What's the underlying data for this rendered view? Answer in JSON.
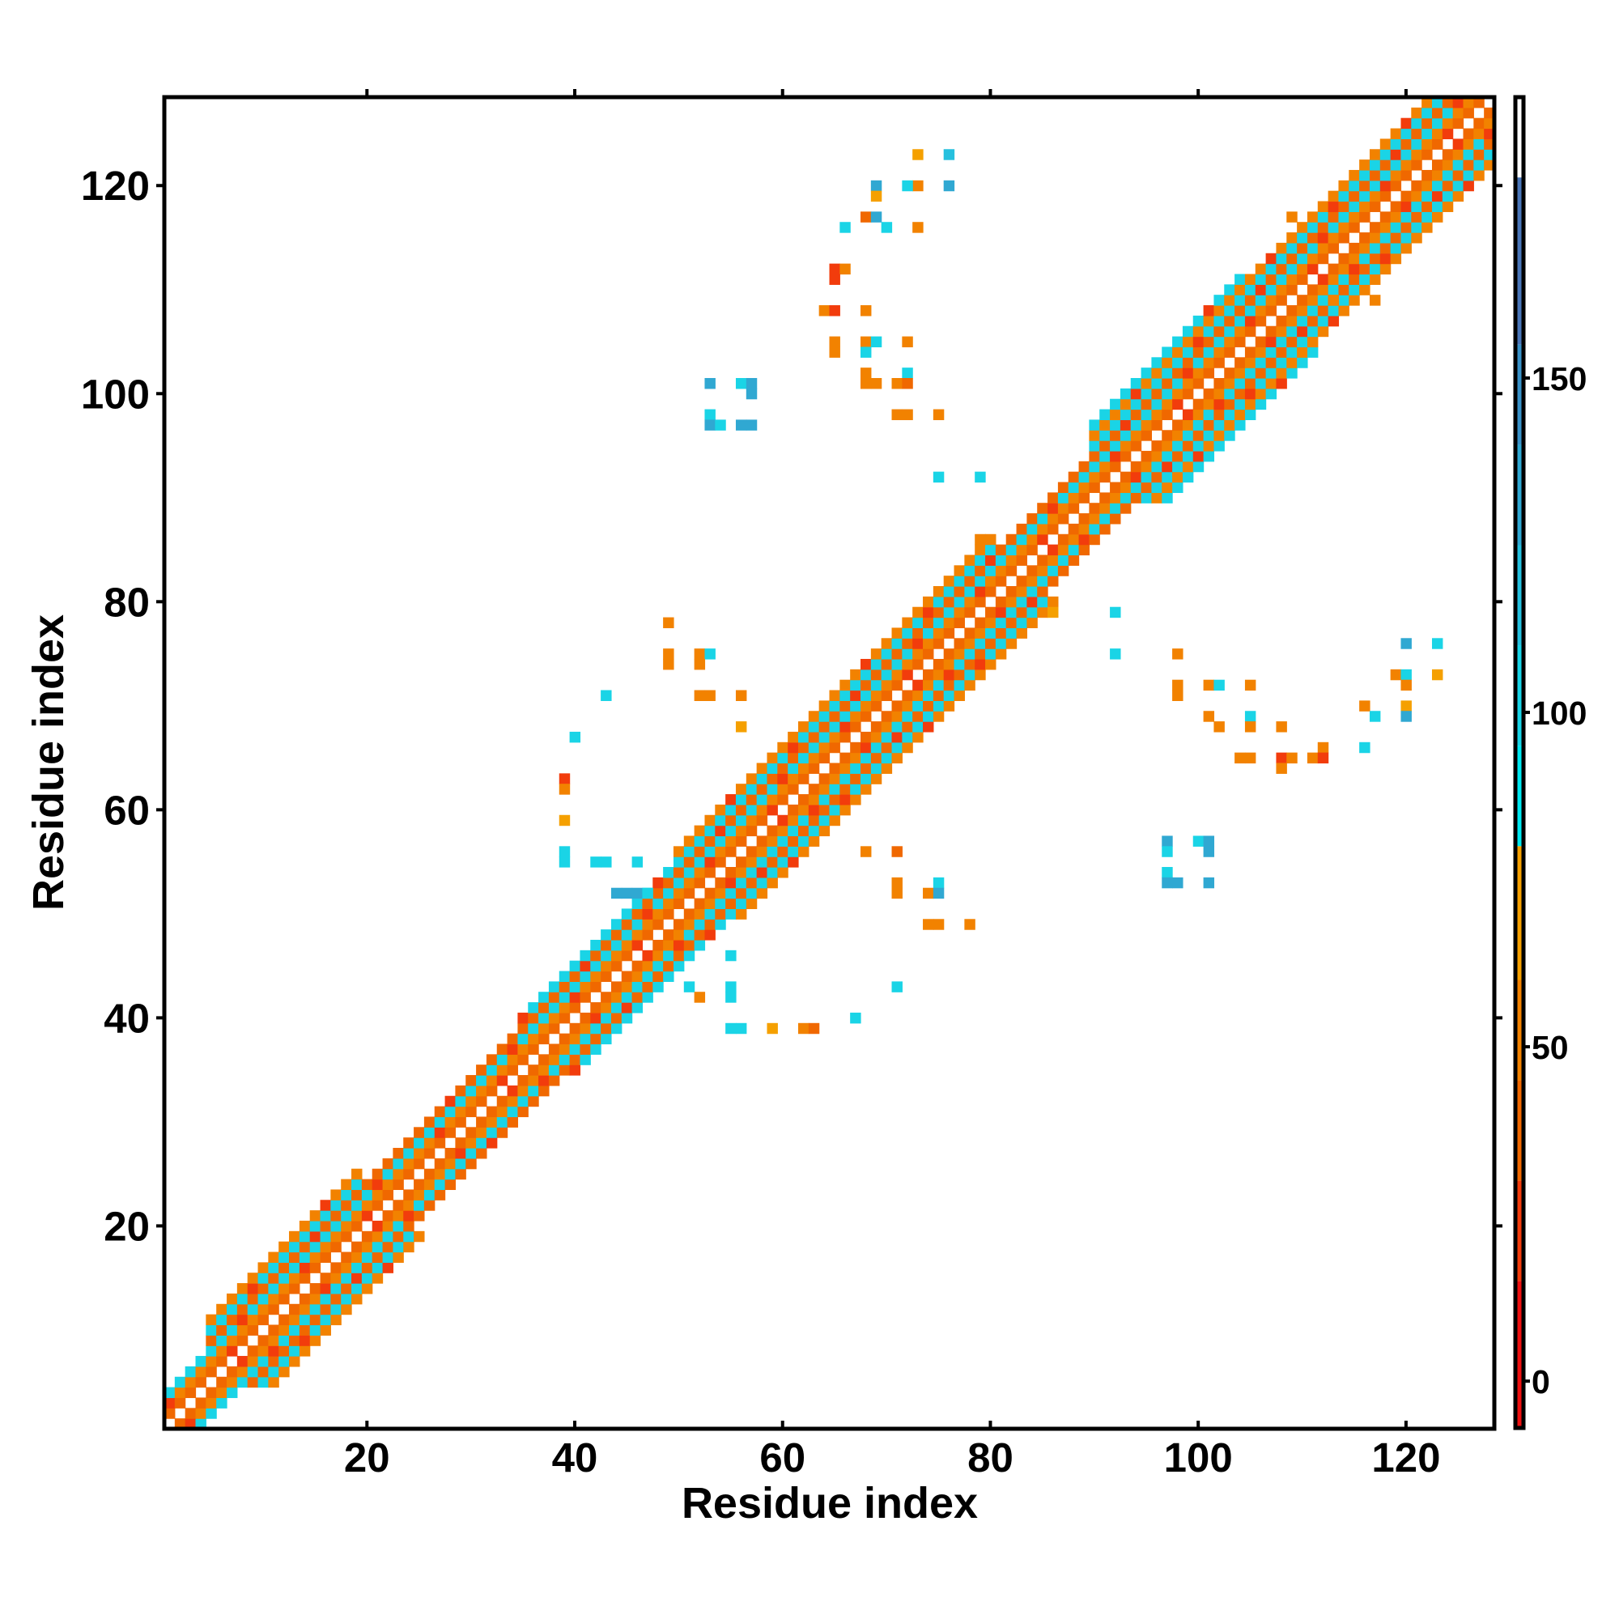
{
  "chart_data": {
    "type": "heatmap",
    "title": "",
    "xlabel": "Residue index",
    "ylabel": "Residue index",
    "xlim": [
      0.5,
      128.5
    ],
    "ylim": [
      0.5,
      128.5
    ],
    "x_ticks": [
      20,
      40,
      60,
      80,
      100,
      120
    ],
    "y_ticks": [
      20,
      40,
      60,
      80,
      100,
      120
    ],
    "colorbar": {
      "range": [
        -7,
        192
      ],
      "ticks": [
        0,
        50,
        100,
        150
      ],
      "bins": [
        {
          "max": 15,
          "color": "#ee1111"
        },
        {
          "max": 30,
          "color": "#f23c0c"
        },
        {
          "max": 45,
          "color": "#f06800"
        },
        {
          "max": 60,
          "color": "#f28200"
        },
        {
          "max": 80,
          "color": "#f5a000"
        },
        {
          "max": 95,
          "color": "#00e8f0"
        },
        {
          "max": 110,
          "color": "#1ad4e6"
        },
        {
          "max": 125,
          "color": "#26c0de"
        },
        {
          "max": 140,
          "color": "#30a8d2"
        },
        {
          "max": 155,
          "color": "#3a92c8"
        },
        {
          "max": 180,
          "color": "#4a76b8"
        },
        {
          "max": 999,
          "color": "#ffffff"
        }
      ]
    },
    "band_pattern": [
      null,
      40,
      45,
      95,
      42,
      95,
      45,
      95
    ],
    "band_segments": [
      {
        "from": 1,
        "to": 4,
        "width": 3
      },
      {
        "from": 5,
        "to": 19,
        "width": 6
      },
      {
        "from": 20,
        "to": 34,
        "width": 4
      },
      {
        "from": 35,
        "to": 49,
        "width": 5
      },
      {
        "from": 50,
        "to": 64,
        "width": 6
      },
      {
        "from": 65,
        "to": 80,
        "width": 6
      },
      {
        "from": 81,
        "to": 89,
        "width": 4
      },
      {
        "from": 90,
        "to": 104,
        "width": 7
      },
      {
        "from": 105,
        "to": 128,
        "width": 6
      }
    ],
    "contacts": [
      [
        76,
        123,
        120
      ],
      [
        73,
        123,
        65
      ],
      [
        76,
        120,
        130
      ],
      [
        73,
        120,
        45
      ],
      [
        72,
        120,
        95
      ],
      [
        69,
        120,
        130
      ],
      [
        69,
        119,
        65
      ],
      [
        68,
        117,
        30
      ],
      [
        69,
        117,
        130
      ],
      [
        66,
        116,
        95
      ],
      [
        70,
        116,
        95
      ],
      [
        73,
        116,
        45
      ],
      [
        65,
        112,
        15
      ],
      [
        66,
        112,
        45
      ],
      [
        65,
        111,
        15
      ],
      [
        64,
        108,
        45
      ],
      [
        65,
        108,
        15
      ],
      [
        68,
        108,
        45
      ],
      [
        65,
        105,
        45
      ],
      [
        68,
        105,
        45
      ],
      [
        69,
        105,
        95
      ],
      [
        72,
        105,
        45
      ],
      [
        65,
        104,
        45
      ],
      [
        68,
        104,
        95
      ],
      [
        68,
        102,
        45
      ],
      [
        72,
        102,
        95
      ],
      [
        68,
        101,
        45
      ],
      [
        69,
        101,
        45
      ],
      [
        71,
        101,
        45
      ],
      [
        72,
        101,
        30
      ],
      [
        71,
        98,
        45
      ],
      [
        72,
        98,
        45
      ],
      [
        75,
        98,
        45
      ],
      [
        53,
        101,
        130
      ],
      [
        56,
        101,
        95
      ],
      [
        57,
        101,
        130
      ],
      [
        57,
        100,
        130
      ],
      [
        53,
        98,
        95
      ],
      [
        53,
        97,
        130
      ],
      [
        54,
        97,
        95
      ],
      [
        56,
        97,
        130
      ],
      [
        57,
        97,
        130
      ],
      [
        75,
        92,
        95
      ],
      [
        79,
        92,
        95
      ],
      [
        79,
        86,
        45
      ],
      [
        49,
        78,
        45
      ],
      [
        49,
        75,
        45
      ],
      [
        49,
        74,
        45
      ],
      [
        52,
        75,
        45
      ],
      [
        53,
        75,
        95
      ],
      [
        52,
        74,
        45
      ],
      [
        52,
        71,
        45
      ],
      [
        53,
        71,
        45
      ],
      [
        56,
        71,
        45
      ],
      [
        43,
        71,
        95
      ],
      [
        56,
        68,
        65
      ],
      [
        40,
        67,
        95
      ],
      [
        39,
        63,
        15
      ],
      [
        39,
        62,
        45
      ],
      [
        39,
        59,
        65
      ],
      [
        39,
        56,
        95
      ],
      [
        39,
        55,
        95
      ],
      [
        42,
        55,
        95
      ],
      [
        43,
        55,
        95
      ],
      [
        46,
        55,
        95
      ],
      [
        68,
        56,
        45
      ],
      [
        71,
        56,
        30
      ],
      [
        71,
        53,
        45
      ],
      [
        71,
        52,
        45
      ],
      [
        74,
        52,
        45
      ],
      [
        75,
        53,
        95
      ],
      [
        75,
        52,
        130
      ],
      [
        74,
        49,
        45
      ],
      [
        75,
        49,
        45
      ],
      [
        78,
        49,
        45
      ],
      [
        55,
        46,
        95
      ],
      [
        51,
        43,
        95
      ],
      [
        55,
        43,
        95
      ],
      [
        55,
        42,
        95
      ],
      [
        52,
        42,
        45
      ],
      [
        71,
        43,
        95
      ],
      [
        55,
        39,
        95
      ],
      [
        56,
        39,
        95
      ],
      [
        59,
        39,
        65
      ],
      [
        62,
        39,
        45
      ],
      [
        63,
        39,
        30
      ],
      [
        67,
        40,
        95
      ],
      [
        44,
        52,
        130
      ],
      [
        45,
        52,
        130
      ],
      [
        46,
        52,
        130
      ],
      [
        47,
        52,
        95
      ],
      [
        92,
        79,
        95
      ],
      [
        86,
        79,
        65
      ],
      [
        92,
        75,
        95
      ],
      [
        98,
        75,
        45
      ],
      [
        98,
        72,
        45
      ],
      [
        98,
        71,
        45
      ],
      [
        101,
        72,
        45
      ],
      [
        102,
        72,
        95
      ],
      [
        105,
        72,
        45
      ],
      [
        101,
        69,
        45
      ],
      [
        102,
        68,
        45
      ],
      [
        105,
        69,
        95
      ],
      [
        105,
        68,
        45
      ],
      [
        108,
        68,
        45
      ],
      [
        104,
        65,
        45
      ],
      [
        105,
        65,
        45
      ],
      [
        108,
        65,
        15
      ],
      [
        108,
        64,
        45
      ],
      [
        109,
        65,
        45
      ],
      [
        111,
        65,
        45
      ],
      [
        112,
        66,
        45
      ],
      [
        112,
        65,
        15
      ],
      [
        116,
        66,
        95
      ],
      [
        116,
        70,
        45
      ],
      [
        117,
        69,
        95
      ],
      [
        120,
        70,
        65
      ],
      [
        120,
        69,
        130
      ],
      [
        119,
        73,
        45
      ],
      [
        120,
        73,
        95
      ],
      [
        123,
        73,
        65
      ],
      [
        120,
        76,
        130
      ],
      [
        123,
        76,
        95
      ],
      [
        120,
        72,
        45
      ],
      [
        97,
        57,
        130
      ],
      [
        100,
        57,
        95
      ],
      [
        101,
        57,
        130
      ],
      [
        97,
        56,
        95
      ],
      [
        101,
        56,
        130
      ],
      [
        97,
        54,
        95
      ],
      [
        97,
        53,
        130
      ],
      [
        98,
        53,
        130
      ],
      [
        101,
        53,
        130
      ],
      [
        109,
        117,
        45
      ],
      [
        117,
        109,
        45
      ],
      [
        113,
        109,
        45
      ]
    ]
  }
}
